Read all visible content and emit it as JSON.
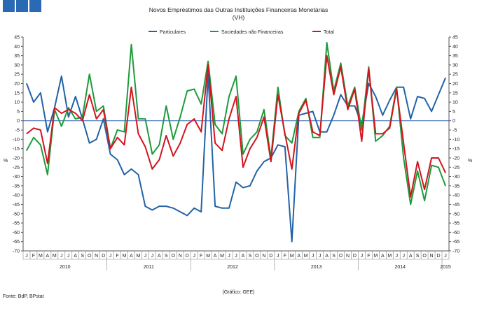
{
  "header": {
    "decor": [
      "square-1",
      "square-2",
      "square-3"
    ]
  },
  "colors": {
    "particulares": "#2363a5",
    "sociedades": "#1e9b3b",
    "total": "#d3141f",
    "zero_line": "#3467b8",
    "axis": "#555555"
  },
  "footer": {
    "source": "Fonte: BdP, BPstat",
    "credit": "(Gráfico: GEE)"
  },
  "chart_data": {
    "type": "line",
    "title": "Novos Empréstimos das Outras Instituições Financeiras Monetárias",
    "subtitle": "(VH)",
    "ylabel_left": "%",
    "ylabel_right": "%",
    "ylim": [
      -70,
      45
    ],
    "yticks": [
      45,
      40,
      35,
      30,
      25,
      20,
      15,
      10,
      5,
      0,
      -5,
      -10,
      -15,
      -20,
      -25,
      -30,
      -35,
      -40,
      -45,
      -50,
      -55,
      -60,
      -65,
      -70
    ],
    "months": [
      "J",
      "F",
      "M",
      "A",
      "M",
      "J",
      "J",
      "A",
      "S",
      "O",
      "N",
      "D",
      "J",
      "F",
      "M",
      "A",
      "M",
      "J",
      "J",
      "A",
      "S",
      "O",
      "N",
      "D",
      "J",
      "F",
      "M",
      "A",
      "M",
      "J",
      "J",
      "A",
      "S",
      "O",
      "N",
      "D",
      "J",
      "F",
      "M",
      "A",
      "M",
      "J",
      "J",
      "A",
      "S",
      "O",
      "N",
      "D",
      "J",
      "F",
      "M",
      "A",
      "M",
      "J",
      "J",
      "A",
      "S",
      "O",
      "N",
      "D",
      "J"
    ],
    "years": [
      "2010",
      "2011",
      "2012",
      "2013",
      "2014",
      "2015"
    ],
    "series": [
      {
        "name": "Particulares",
        "color": "#2363a5",
        "values": [
          20,
          10,
          15,
          -6,
          7,
          24,
          2,
          13,
          1,
          -12,
          -10,
          1,
          -18,
          -21,
          -29,
          -26,
          -29,
          -46,
          -48,
          -46,
          -46,
          -47,
          -49,
          -51,
          -47,
          -49,
          25,
          -46,
          -47,
          -47,
          -33,
          -36,
          -35,
          -27,
          -22,
          -20,
          -13,
          -14,
          -65,
          3,
          4,
          5,
          -6,
          -6,
          3,
          14,
          8,
          8,
          -2,
          20,
          13,
          3,
          11,
          18,
          18,
          1,
          13,
          12,
          5,
          14,
          23
        ]
      },
      {
        "name": "Sociedades não Financeiras",
        "color": "#1e9b3b",
        "values": [
          -16,
          -9,
          -13,
          -29,
          6,
          -3,
          7,
          1,
          2,
          25,
          5,
          8,
          -15,
          -5,
          -6,
          41,
          1,
          1,
          -18,
          -13,
          8,
          -10,
          2,
          16,
          17,
          9,
          32,
          -2,
          -7,
          13,
          24,
          -18,
          -10,
          -6,
          6,
          -20,
          18,
          -8,
          -12,
          5,
          12,
          -9,
          -9,
          42,
          16,
          31,
          8,
          18,
          -5,
          29,
          -11,
          -8,
          -3,
          18,
          -20,
          -45,
          -27,
          -43,
          -24,
          -25,
          -35
        ]
      },
      {
        "name": "Total",
        "color": "#d3141f",
        "values": [
          -7,
          -4,
          -5,
          -23,
          7,
          4,
          6,
          4,
          0,
          14,
          1,
          6,
          -15,
          -9,
          -13,
          18,
          -7,
          -14,
          -26,
          -21,
          -8,
          -19,
          -12,
          -2,
          1,
          -6,
          30,
          -12,
          -16,
          1,
          13,
          -25,
          -15,
          -9,
          2,
          -22,
          14,
          -7,
          -26,
          4,
          11,
          -6,
          -8,
          35,
          14,
          29,
          6,
          17,
          -11,
          28,
          -7,
          -7,
          -4,
          17,
          -12,
          -41,
          -22,
          -37,
          -20,
          -20,
          -28
        ]
      }
    ]
  }
}
